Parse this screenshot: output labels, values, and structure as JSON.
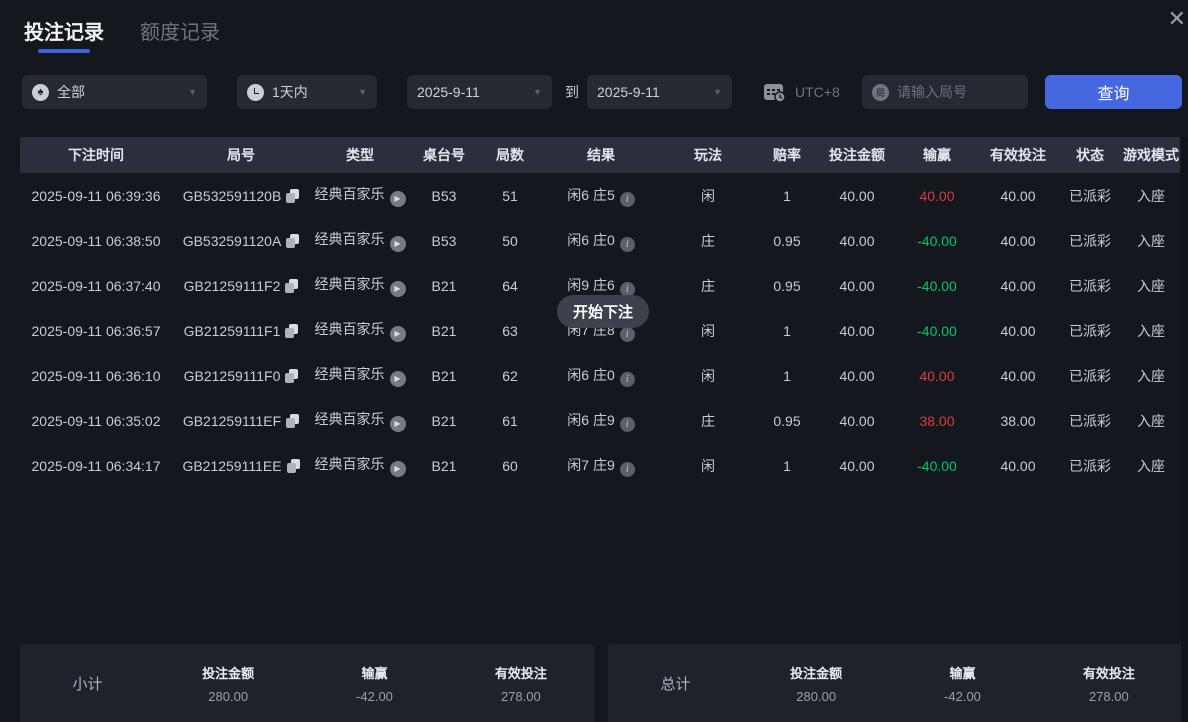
{
  "window": {
    "close_icon": "✕"
  },
  "tabs": [
    {
      "label": "投注记录",
      "active": true
    },
    {
      "label": "额度记录",
      "active": false
    }
  ],
  "filters": {
    "category": {
      "value": "全部",
      "icon": "spade",
      "icon_glyph": "♠"
    },
    "range": {
      "value": "1天内",
      "icon": "clock"
    },
    "date_from": "2025-9-11",
    "to_label": "到",
    "date_to": "2025-9-11",
    "timezone": {
      "label": "UTC+8",
      "icon": "calendar-clock"
    },
    "search": {
      "placeholder": "请输入局号",
      "icon_glyph": "局"
    },
    "query_button": "查询"
  },
  "tooltip": {
    "text": "开始下注"
  },
  "table": {
    "columns": [
      "下注时间",
      "局号",
      "类型",
      "桌台号",
      "局数",
      "结果",
      "玩法",
      "赔率",
      "投注金额",
      "输赢",
      "有效投注",
      "状态",
      "游戏模式"
    ],
    "rows": [
      {
        "time": "2025-09-11 06:39:36",
        "round_id": "GB532591120B",
        "type": "经典百家乐",
        "table_no": "B53",
        "round": "51",
        "result": "闲6 庄5",
        "play": "闲",
        "odds": "1",
        "bet": "40.00",
        "win": "40.00",
        "win_color": "red",
        "valid": "40.00",
        "status": "已派彩",
        "mode": "入座"
      },
      {
        "time": "2025-09-11 06:38:50",
        "round_id": "GB532591120A",
        "type": "经典百家乐",
        "table_no": "B53",
        "round": "50",
        "result": "闲6 庄0",
        "play": "庄",
        "odds": "0.95",
        "bet": "40.00",
        "win": "-40.00",
        "win_color": "green",
        "valid": "40.00",
        "status": "已派彩",
        "mode": "入座"
      },
      {
        "time": "2025-09-11 06:37:40",
        "round_id": "GB21259111F2",
        "type": "经典百家乐",
        "table_no": "B21",
        "round": "64",
        "result": "闲9 庄6",
        "play": "庄",
        "odds": "0.95",
        "bet": "40.00",
        "win": "-40.00",
        "win_color": "green",
        "valid": "40.00",
        "status": "已派彩",
        "mode": "入座"
      },
      {
        "time": "2025-09-11 06:36:57",
        "round_id": "GB21259111F1",
        "type": "经典百家乐",
        "table_no": "B21",
        "round": "63",
        "result": "闲7 庄8",
        "play": "闲",
        "odds": "1",
        "bet": "40.00",
        "win": "-40.00",
        "win_color": "green",
        "valid": "40.00",
        "status": "已派彩",
        "mode": "入座"
      },
      {
        "time": "2025-09-11 06:36:10",
        "round_id": "GB21259111F0",
        "type": "经典百家乐",
        "table_no": "B21",
        "round": "62",
        "result": "闲6 庄0",
        "play": "闲",
        "odds": "1",
        "bet": "40.00",
        "win": "40.00",
        "win_color": "red",
        "valid": "40.00",
        "status": "已派彩",
        "mode": "入座"
      },
      {
        "time": "2025-09-11 06:35:02",
        "round_id": "GB21259111EF",
        "type": "经典百家乐",
        "table_no": "B21",
        "round": "61",
        "result": "闲6 庄9",
        "play": "庄",
        "odds": "0.95",
        "bet": "40.00",
        "win": "38.00",
        "win_color": "red",
        "valid": "38.00",
        "status": "已派彩",
        "mode": "入座"
      },
      {
        "time": "2025-09-11 06:34:17",
        "round_id": "GB21259111EE",
        "type": "经典百家乐",
        "table_no": "B21",
        "round": "60",
        "result": "闲7 庄9",
        "play": "闲",
        "odds": "1",
        "bet": "40.00",
        "win": "-40.00",
        "win_color": "green",
        "valid": "40.00",
        "status": "已派彩",
        "mode": "入座"
      }
    ]
  },
  "summary": [
    {
      "title": "小计",
      "items": [
        {
          "label": "投注金额",
          "value": "280.00",
          "color": "normal"
        },
        {
          "label": "输赢",
          "value": "-42.00",
          "color": "green"
        },
        {
          "label": "有效投注",
          "value": "278.00",
          "color": "normal"
        }
      ]
    },
    {
      "title": "总计",
      "items": [
        {
          "label": "投注金额",
          "value": "280.00",
          "color": "normal"
        },
        {
          "label": "输赢",
          "value": "-42.00",
          "color": "green"
        },
        {
          "label": "有效投注",
          "value": "278.00",
          "color": "normal"
        }
      ]
    }
  ],
  "colors": {
    "accent": "#4568e0",
    "win_red": "#dd3c3c",
    "loss_green": "#00c674",
    "background": "#14171d"
  }
}
